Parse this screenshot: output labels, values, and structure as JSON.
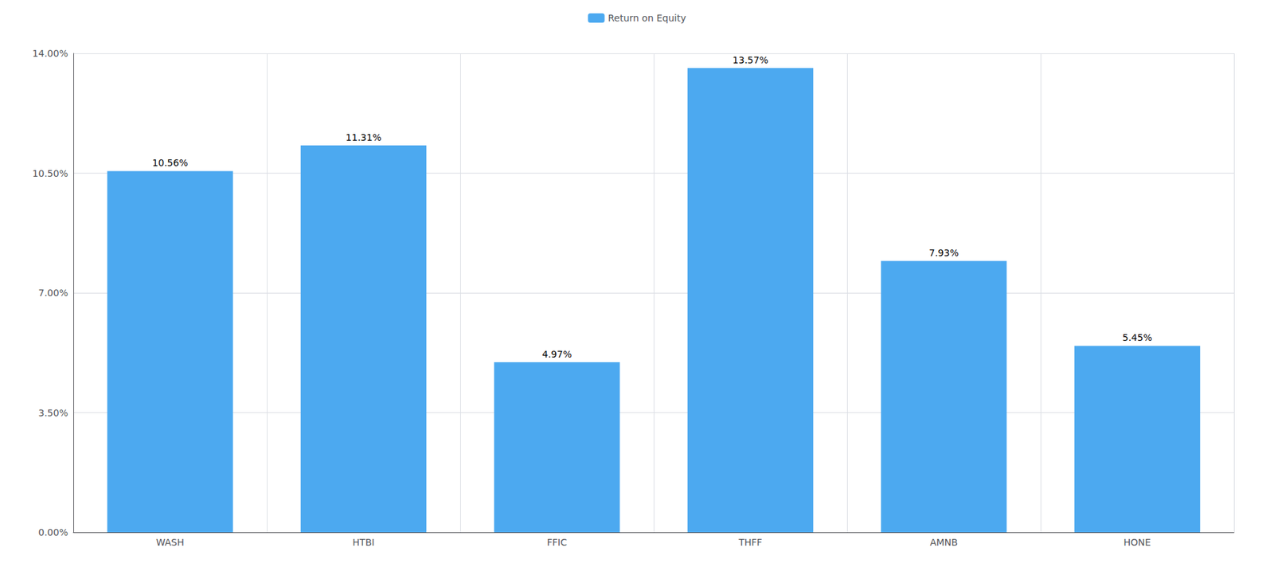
{
  "chart_data": {
    "type": "bar",
    "categories": [
      "WASH",
      "HTBI",
      "FFIC",
      "THFF",
      "AMNB",
      "HONE"
    ],
    "series": [
      {
        "name": "Return on Equity",
        "color": "#4CA9F0",
        "values": [
          10.56,
          11.31,
          4.97,
          13.57,
          7.93,
          5.45
        ],
        "value_labels": [
          "10.56%",
          "11.31%",
          "4.97%",
          "13.57%",
          "7.93%",
          "5.45%"
        ]
      }
    ],
    "ylim": [
      0,
      14.0
    ],
    "yticks": [
      {
        "value": 0.0,
        "label": "0.00%"
      },
      {
        "value": 3.5,
        "label": "3.50%"
      },
      {
        "value": 7.0,
        "label": "7.00%"
      },
      {
        "value": 10.5,
        "label": "10.50%"
      },
      {
        "value": 14.0,
        "label": "14.00%"
      }
    ],
    "grid": true,
    "legend": "top",
    "data_labels": true
  }
}
